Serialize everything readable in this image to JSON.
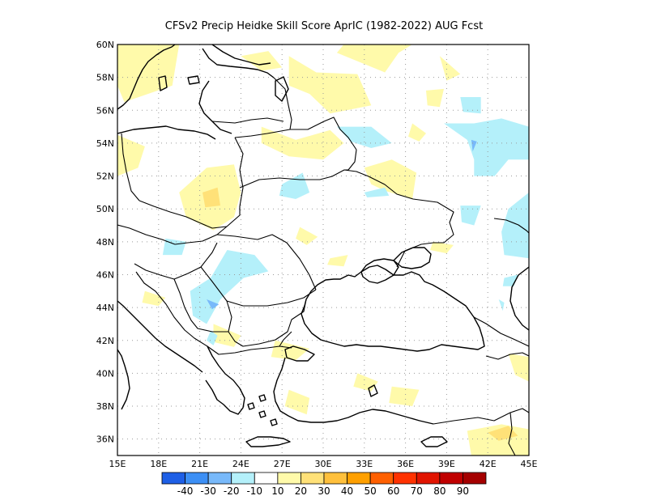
{
  "title": "CFSv2 Precip Heidke Skill Score AprIC (1982-2022) AUG Fcst",
  "map": {
    "lon_range": [
      15,
      45
    ],
    "lat_range": [
      35,
      60
    ],
    "lon_ticks": [
      {
        "value": 15,
        "label": "15E"
      },
      {
        "value": 18,
        "label": "18E"
      },
      {
        "value": 21,
        "label": "21E"
      },
      {
        "value": 24,
        "label": "24E"
      },
      {
        "value": 27,
        "label": "27E"
      },
      {
        "value": 30,
        "label": "30E"
      },
      {
        "value": 33,
        "label": "33E"
      },
      {
        "value": 36,
        "label": "36E"
      },
      {
        "value": 39,
        "label": "39E"
      },
      {
        "value": 42,
        "label": "42E"
      },
      {
        "value": 45,
        "label": "45E"
      }
    ],
    "lat_ticks": [
      {
        "value": 36,
        "label": "36N"
      },
      {
        "value": 38,
        "label": "38N"
      },
      {
        "value": 40,
        "label": "40N"
      },
      {
        "value": 42,
        "label": "42N"
      },
      {
        "value": 44,
        "label": "44N"
      },
      {
        "value": 46,
        "label": "46N"
      },
      {
        "value": 48,
        "label": "48N"
      },
      {
        "value": 50,
        "label": "50N"
      },
      {
        "value": 52,
        "label": "52N"
      },
      {
        "value": 54,
        "label": "54N"
      },
      {
        "value": 56,
        "label": "56N"
      },
      {
        "value": 58,
        "label": "58N"
      },
      {
        "value": 60,
        "label": "60N"
      }
    ],
    "gridlines": "dotted",
    "skill_patches": [
      {
        "level": 10,
        "lonlat": [
          [
            15,
            60
          ],
          [
            19.5,
            60
          ],
          [
            19,
            57.5
          ],
          [
            15.5,
            56.5
          ],
          [
            15,
            57.5
          ]
        ]
      },
      {
        "level": 10,
        "lonlat": [
          [
            24,
            59.3
          ],
          [
            25.5,
            58.4
          ],
          [
            27,
            58.6
          ],
          [
            26,
            59.6
          ]
        ]
      },
      {
        "level": 10,
        "lonlat": [
          [
            27.5,
            59.3
          ],
          [
            29.5,
            58.3
          ],
          [
            32.5,
            58.2
          ],
          [
            33.5,
            56.3
          ],
          [
            30.5,
            55.8
          ],
          [
            29,
            57
          ],
          [
            27.5,
            57.5
          ]
        ]
      },
      {
        "level": 10,
        "lonlat": [
          [
            31,
            59.5
          ],
          [
            34.5,
            58.3
          ],
          [
            35.5,
            59.5
          ],
          [
            36.5,
            60
          ],
          [
            31.5,
            60
          ]
        ]
      },
      {
        "level": 10,
        "lonlat": [
          [
            38.5,
            59.3
          ],
          [
            40,
            58.2
          ],
          [
            39,
            57.8
          ]
        ]
      },
      {
        "level": 10,
        "lonlat": [
          [
            25.5,
            55
          ],
          [
            28,
            54.2
          ],
          [
            30.5,
            54.8
          ],
          [
            31.5,
            54
          ],
          [
            30,
            53
          ],
          [
            27.5,
            53.2
          ],
          [
            25.5,
            54
          ]
        ]
      },
      {
        "level": 10,
        "lonlat": [
          [
            15,
            54.5
          ],
          [
            17,
            53.8
          ],
          [
            16.5,
            52.5
          ],
          [
            15,
            52
          ]
        ]
      },
      {
        "level": 10,
        "lonlat": [
          [
            19.5,
            51
          ],
          [
            21.5,
            52.5
          ],
          [
            23.5,
            52.7
          ],
          [
            24,
            51
          ],
          [
            23.5,
            49.5
          ],
          [
            22,
            48.7
          ],
          [
            20,
            49.5
          ]
        ]
      },
      {
        "level": 10,
        "lonlat": [
          [
            33,
            52.5
          ],
          [
            35,
            53
          ],
          [
            36.8,
            52.2
          ],
          [
            36.5,
            50.6
          ],
          [
            34.5,
            51.1
          ],
          [
            33.5,
            51.5
          ]
        ]
      },
      {
        "level": 10,
        "lonlat": [
          [
            37.5,
            57.2
          ],
          [
            38.8,
            57.3
          ],
          [
            38.5,
            56.2
          ],
          [
            37.6,
            56.3
          ]
        ]
      },
      {
        "level": 10,
        "lonlat": [
          [
            36.5,
            55.2
          ],
          [
            37.5,
            54.6
          ],
          [
            37,
            54.1
          ],
          [
            36.2,
            54.4
          ]
        ]
      },
      {
        "level": 10,
        "lonlat": [
          [
            28.3,
            48.9
          ],
          [
            29.6,
            48.3
          ],
          [
            28.8,
            47.8
          ],
          [
            28,
            48.2
          ]
        ]
      },
      {
        "level": 10,
        "lonlat": [
          [
            30.5,
            47
          ],
          [
            31.8,
            47.2
          ],
          [
            31.5,
            46.5
          ],
          [
            30.3,
            46.6
          ]
        ]
      },
      {
        "level": 10,
        "lonlat": [
          [
            17,
            45
          ],
          [
            18.5,
            44.6
          ],
          [
            18,
            44.1
          ],
          [
            16.8,
            44.3
          ]
        ]
      },
      {
        "level": 10,
        "lonlat": [
          [
            22,
            43
          ],
          [
            24,
            42.3
          ],
          [
            23.5,
            41.6
          ],
          [
            22,
            41.9
          ]
        ]
      },
      {
        "level": 10,
        "lonlat": [
          [
            26.5,
            42
          ],
          [
            29,
            41.5
          ],
          [
            28,
            40.8
          ],
          [
            26.2,
            41
          ]
        ]
      },
      {
        "level": 10,
        "lonlat": [
          [
            27.5,
            39
          ],
          [
            29,
            38.5
          ],
          [
            28.8,
            37.5
          ],
          [
            27.2,
            38
          ]
        ]
      },
      {
        "level": 10,
        "lonlat": [
          [
            32.5,
            40
          ],
          [
            34,
            39.5
          ],
          [
            33.5,
            38.9
          ],
          [
            32.2,
            39.2
          ]
        ]
      },
      {
        "level": 10,
        "lonlat": [
          [
            35,
            39.2
          ],
          [
            37,
            39
          ],
          [
            36.5,
            38
          ],
          [
            34.8,
            38.2
          ]
        ]
      },
      {
        "level": 10,
        "lonlat": [
          [
            43.5,
            41.2
          ],
          [
            45,
            41
          ],
          [
            45,
            39.5
          ],
          [
            44,
            39.9
          ]
        ]
      },
      {
        "level": 10,
        "lonlat": [
          [
            40.5,
            36.5
          ],
          [
            43,
            36.9
          ],
          [
            45,
            36.6
          ],
          [
            45,
            35
          ],
          [
            40.8,
            35
          ]
        ]
      },
      {
        "level": 10,
        "lonlat": [
          [
            38,
            48
          ],
          [
            39.5,
            47.8
          ],
          [
            39,
            47.3
          ],
          [
            37.8,
            47.5
          ]
        ]
      },
      {
        "level": 20,
        "lonlat": [
          [
            21.2,
            51
          ],
          [
            22.3,
            51.3
          ],
          [
            22.5,
            50.2
          ],
          [
            21.4,
            50.1
          ]
        ]
      },
      {
        "level": 20,
        "lonlat": [
          [
            42,
            36.4
          ],
          [
            43.5,
            36.8
          ],
          [
            44.2,
            36.2
          ],
          [
            42.8,
            35.9
          ]
        ]
      },
      {
        "level": -10,
        "lonlat": [
          [
            31,
            55
          ],
          [
            33.5,
            55
          ],
          [
            35,
            54
          ],
          [
            33.5,
            53.7
          ],
          [
            32,
            54.1
          ]
        ]
      },
      {
        "level": -10,
        "lonlat": [
          [
            38.8,
            55.2
          ],
          [
            40.5,
            54.2
          ],
          [
            41,
            53
          ],
          [
            41,
            52
          ],
          [
            42.5,
            52
          ],
          [
            43.5,
            53
          ],
          [
            45,
            53
          ],
          [
            45,
            55
          ],
          [
            43,
            55.5
          ],
          [
            41,
            55.2
          ]
        ]
      },
      {
        "level": -10,
        "lonlat": [
          [
            40,
            56.8
          ],
          [
            41.5,
            56.8
          ],
          [
            41.5,
            55.8
          ],
          [
            40.2,
            55.9
          ]
        ]
      },
      {
        "level": -10,
        "lonlat": [
          [
            27,
            51.5
          ],
          [
            28.5,
            52.2
          ],
          [
            29,
            51
          ],
          [
            28,
            50.6
          ],
          [
            26.8,
            50.8
          ]
        ]
      },
      {
        "level": -10,
        "lonlat": [
          [
            33,
            51
          ],
          [
            34.5,
            51.3
          ],
          [
            34.8,
            50.8
          ],
          [
            33.2,
            50.7
          ]
        ]
      },
      {
        "level": -10,
        "lonlat": [
          [
            40,
            50.2
          ],
          [
            41.5,
            50.2
          ],
          [
            41,
            49
          ],
          [
            40.1,
            49.2
          ]
        ]
      },
      {
        "level": -10,
        "lonlat": [
          [
            43.5,
            50
          ],
          [
            45,
            51
          ],
          [
            45,
            47
          ],
          [
            43.2,
            47.2
          ],
          [
            43,
            48.6
          ]
        ]
      },
      {
        "level": -10,
        "lonlat": [
          [
            18.5,
            48.2
          ],
          [
            20,
            48
          ],
          [
            19.7,
            47.2
          ],
          [
            18.3,
            47.2
          ]
        ]
      },
      {
        "level": -10,
        "lonlat": [
          [
            23,
            47.5
          ],
          [
            25,
            47.2
          ],
          [
            26,
            46.2
          ],
          [
            24.2,
            45.8
          ],
          [
            22.5,
            44.5
          ],
          [
            21.5,
            43
          ],
          [
            20.5,
            43.5
          ],
          [
            20.3,
            45
          ],
          [
            21.8,
            45.8
          ]
        ]
      },
      {
        "level": -10,
        "lonlat": [
          [
            21.8,
            42.6
          ],
          [
            22.3,
            42.3
          ],
          [
            22,
            41.7
          ],
          [
            21.5,
            42
          ]
        ]
      },
      {
        "level": -10,
        "lonlat": [
          [
            42.8,
            44.5
          ],
          [
            43.2,
            44.3
          ],
          [
            43.1,
            43.8
          ]
        ]
      },
      {
        "level": -10,
        "lonlat": [
          [
            43.2,
            45.8
          ],
          [
            44.2,
            46
          ],
          [
            43.9,
            45.3
          ],
          [
            43.1,
            45.3
          ]
        ]
      },
      {
        "level": -20,
        "lonlat": [
          [
            21.5,
            44.5
          ],
          [
            22.4,
            44.2
          ],
          [
            21.9,
            43.9
          ]
        ]
      },
      {
        "level": -20,
        "lonlat": [
          [
            40.8,
            54.2
          ],
          [
            41.2,
            54.1
          ],
          [
            40.9,
            53.5
          ]
        ]
      }
    ],
    "features": {
      "coastlines": "black",
      "country_borders": "black"
    }
  },
  "colorbar": {
    "colors": [
      "#1e5fe6",
      "#3c8ff5",
      "#78b9fa",
      "#b4f0fa",
      "#ffffff",
      "#fffaaa",
      "#ffe178",
      "#ffc03c",
      "#ffa000",
      "#ff6000",
      "#ff3200",
      "#e11400",
      "#c00000",
      "#a50000"
    ],
    "labels": [
      "-40",
      "-30",
      "-20",
      "-10",
      "10",
      "20",
      "30",
      "40",
      "50",
      "60",
      "70",
      "80",
      "90"
    ],
    "level_colors": {
      "-20": "#78b9fa",
      "-10": "#b4f0fa",
      "10": "#fffaaa",
      "20": "#ffe178"
    }
  }
}
